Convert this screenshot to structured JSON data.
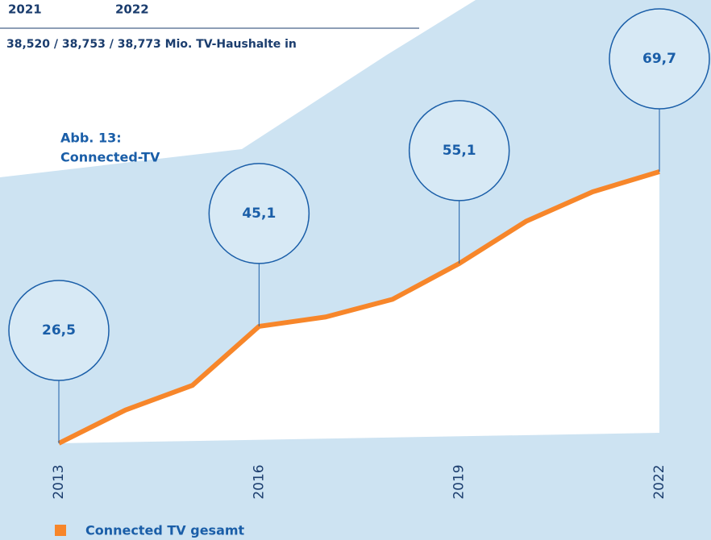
{
  "chart_data": {
    "type": "line",
    "title": "Abb. 13:",
    "subtitle": "Connected-TV",
    "annotations": [
      "2021",
      "2022",
      "38,520 / 38,753 / 38,773 Mio. TV-Haushalte in"
    ],
    "x": [
      2013,
      2014,
      2015,
      2016,
      2017,
      2018,
      2019,
      2020,
      2021,
      2022
    ],
    "xlim": [
      2013,
      2022
    ],
    "xticks": [
      2013,
      2016,
      2019,
      2022
    ],
    "ylim": [
      20,
      80
    ],
    "series": [
      {
        "name": "Connected TV gesamt",
        "color": "#f7862a",
        "values": [
          26.5,
          31.8,
          35.7,
          45.1,
          46.6,
          49.4,
          55.1,
          61.8,
          66.5,
          69.7
        ],
        "value_labels": [
          "26,5",
          null,
          null,
          "45,1",
          null,
          null,
          "55,1",
          null,
          null,
          "69,7"
        ]
      }
    ]
  }
}
